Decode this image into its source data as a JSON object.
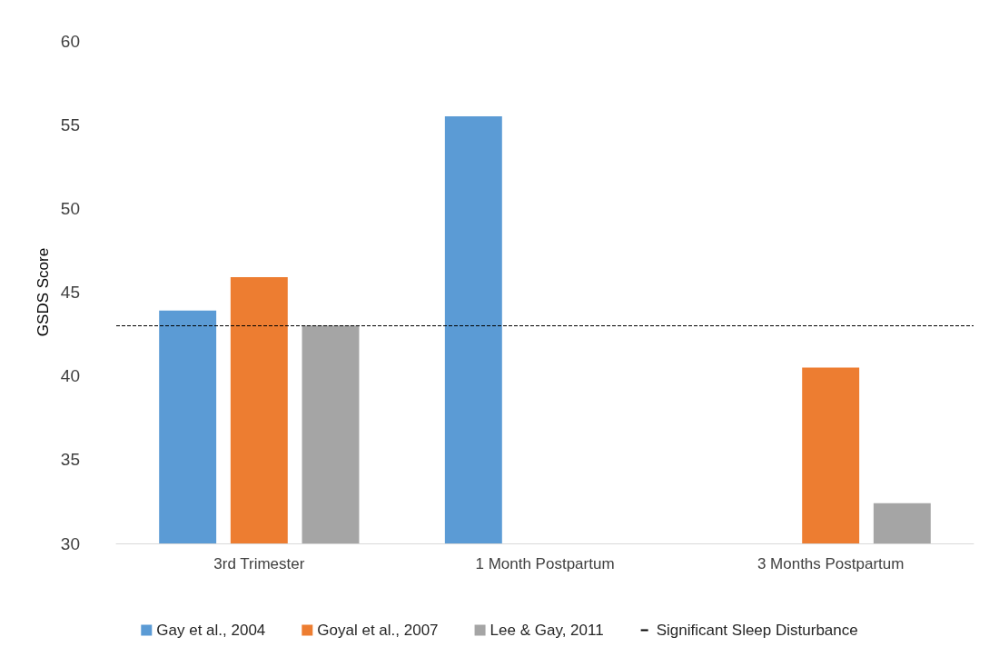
{
  "chart_data": {
    "type": "bar",
    "ylabel": "GSDS Score",
    "categories": [
      "3rd Trimester",
      "1 Month Postpartum",
      "3 Months Postpartum"
    ],
    "series": [
      {
        "name": "Gay et al., 2004",
        "color": "#5b9bd5",
        "values": [
          43.9,
          55.5,
          null
        ]
      },
      {
        "name": "Goyal et al., 2007",
        "color": "#ed7d31",
        "values": [
          45.9,
          null,
          40.5
        ]
      },
      {
        "name": "Lee & Gay, 2011",
        "color": "#a5a5a5",
        "values": [
          43.0,
          null,
          32.4
        ]
      }
    ],
    "ylim": [
      30,
      60
    ],
    "yticks": [
      30,
      35,
      40,
      45,
      50,
      55,
      60
    ],
    "grid": false,
    "legend": "bottom",
    "ref_lines": [
      {
        "axis": "y",
        "value": 43,
        "label": "Significant Sleep Disturbance",
        "color": "#000000",
        "line_style": "dashed"
      }
    ]
  }
}
